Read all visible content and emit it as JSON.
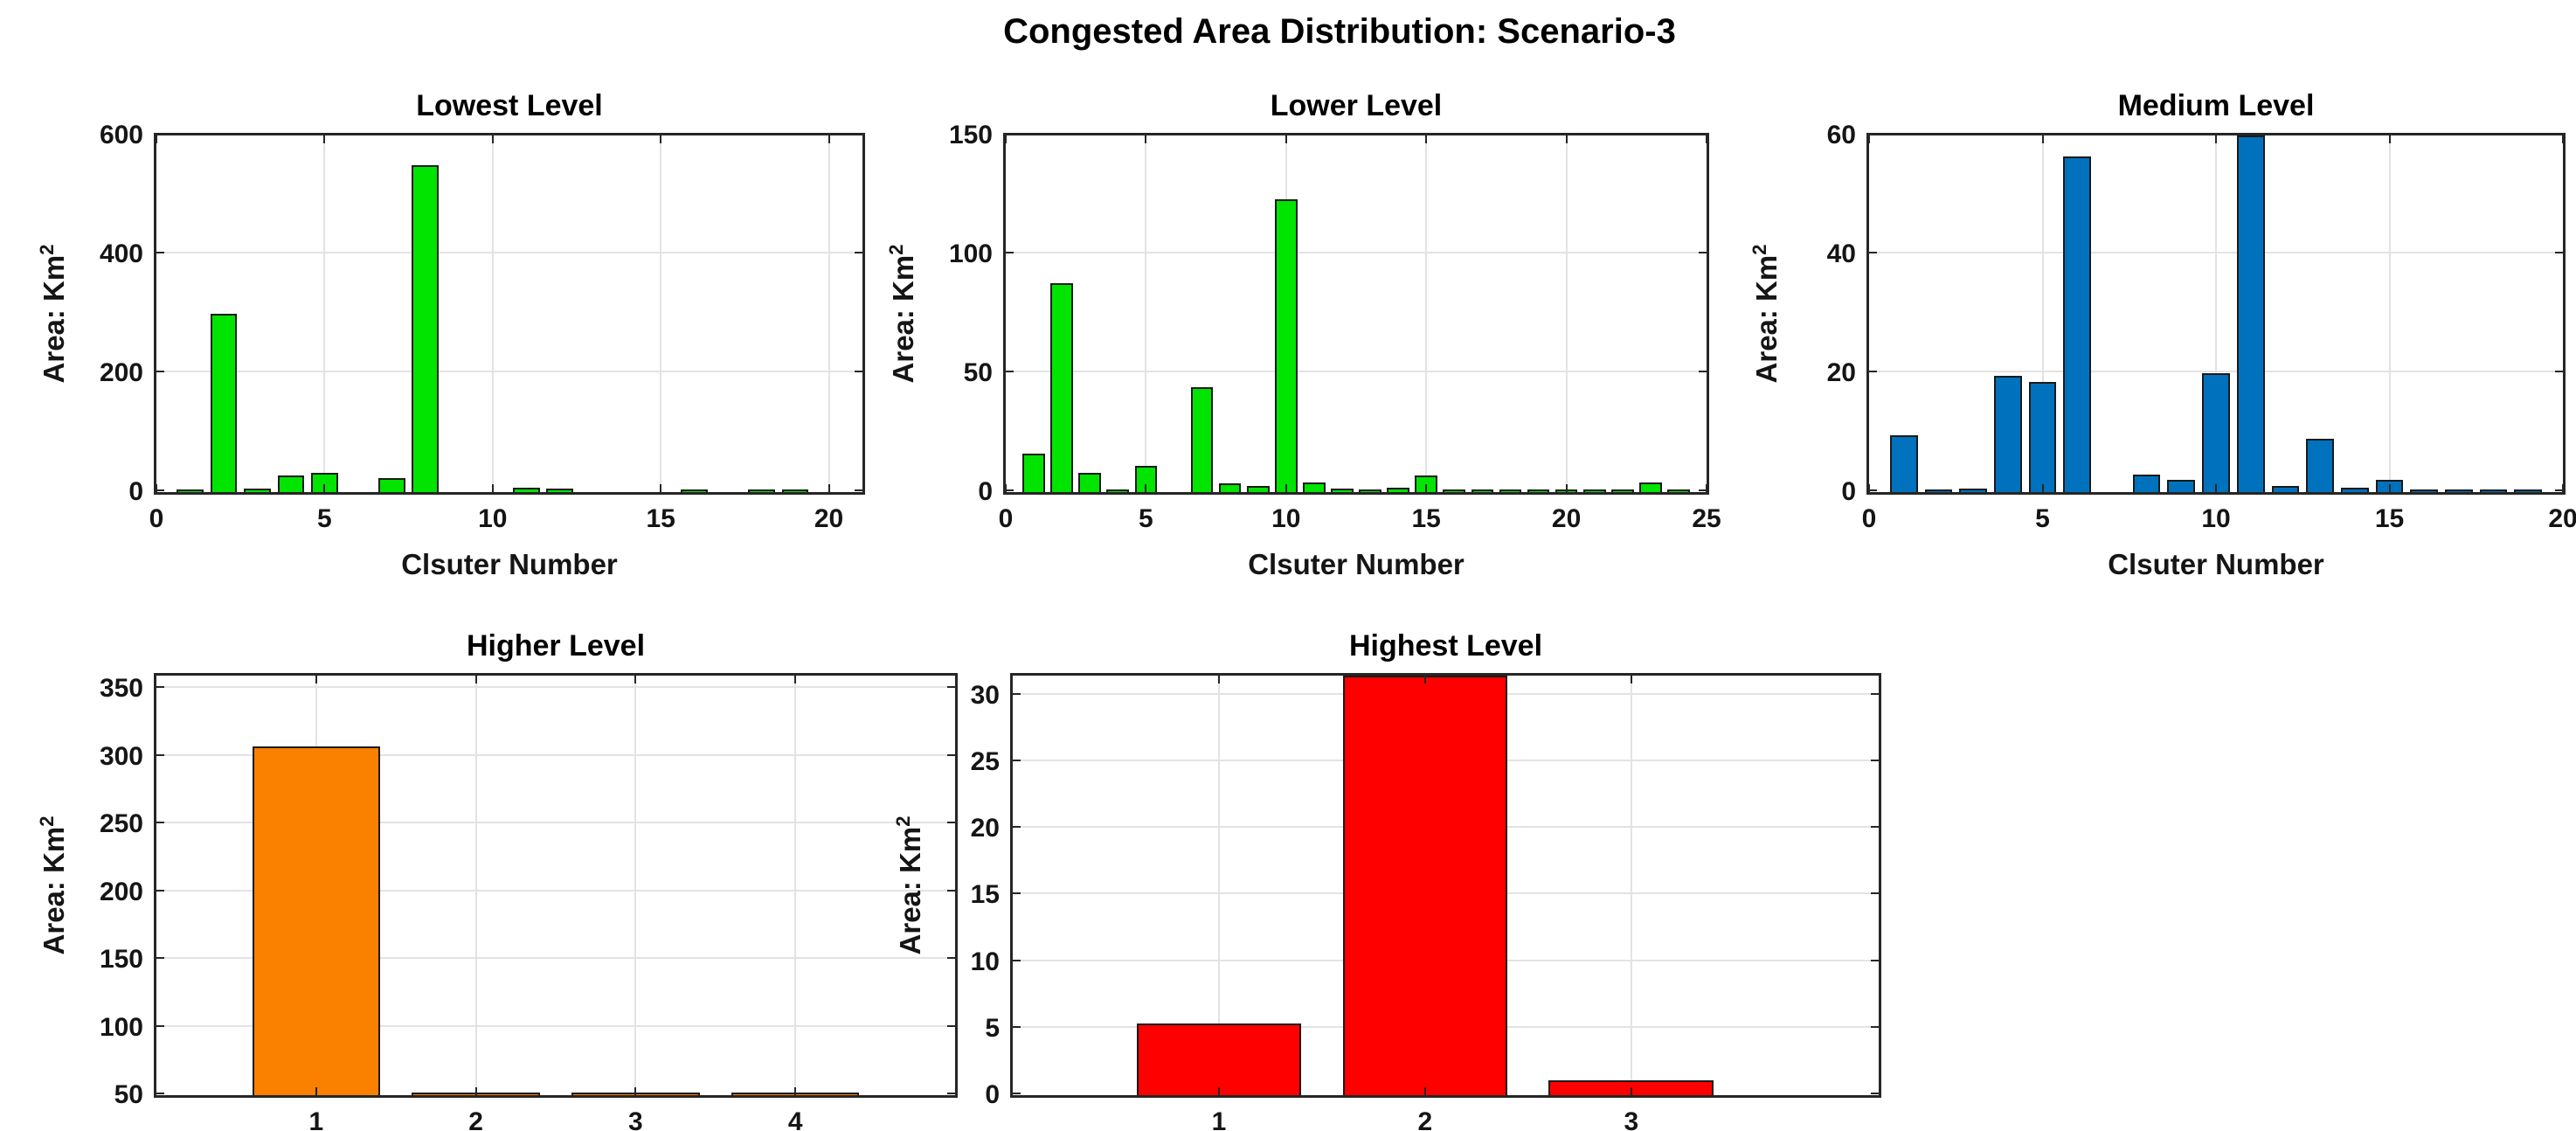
{
  "figure": {
    "title": "Congested Area Distribution: Scenario-3",
    "background_color": "#ffffff",
    "grid_color": "#e3e3e3",
    "spine_color": "#262626",
    "text_color": "#111111"
  },
  "chart_data": [
    {
      "type": "bar",
      "title": "Lowest Level",
      "xlabel": "Clsuter Number",
      "ylabel": "Area: Km",
      "ylabel_sup": "2",
      "bar_color": "#00E400",
      "bar_edge_color": "#1a1a1a",
      "categories": [
        1,
        2,
        3,
        4,
        5,
        6,
        7,
        8,
        9,
        10,
        11,
        12,
        13,
        14,
        15,
        16,
        17,
        18,
        19,
        20
      ],
      "values": [
        4,
        300,
        6,
        28,
        32,
        0,
        23,
        550,
        0,
        0,
        7,
        6,
        0,
        0,
        0,
        2,
        0,
        2,
        5,
        0
      ],
      "xlim": [
        0,
        21
      ],
      "ylim": [
        0,
        600
      ],
      "xticks": [
        0,
        5,
        10,
        15,
        20
      ],
      "yticks": [
        0,
        200,
        400,
        600
      ],
      "grid": true,
      "bar_width_units": 0.8
    },
    {
      "type": "bar",
      "title": "Lower Level",
      "xlabel": "Clsuter Number",
      "ylabel": "Area: Km",
      "ylabel_sup": "2",
      "bar_color": "#00E400",
      "bar_edge_color": "#1a1a1a",
      "categories": [
        1,
        2,
        3,
        4,
        5,
        6,
        7,
        8,
        9,
        10,
        11,
        12,
        13,
        14,
        15,
        16,
        17,
        18,
        19,
        20,
        21,
        22,
        23,
        24
      ],
      "values": [
        16,
        88,
        8,
        1,
        11,
        0,
        44,
        3.5,
        2.5,
        123,
        4,
        1.5,
        1,
        2,
        7,
        0.2,
        0.2,
        0.2,
        0.2,
        1,
        0.2,
        0.2,
        4,
        0.2
      ],
      "xlim": [
        0,
        25
      ],
      "ylim": [
        0,
        150
      ],
      "xticks": [
        0,
        5,
        10,
        15,
        20,
        25
      ],
      "yticks": [
        0,
        50,
        100,
        150
      ],
      "grid": true,
      "bar_width_units": 0.8
    },
    {
      "type": "bar",
      "title": "Medium Level",
      "xlabel": "Clsuter Number",
      "ylabel": "Area: Km",
      "ylabel_sup": "2",
      "bar_color": "#0072BD",
      "bar_edge_color": "#1a1a1a",
      "categories": [
        1,
        2,
        3,
        4,
        5,
        6,
        7,
        8,
        9,
        10,
        11,
        12,
        13,
        14,
        15,
        16,
        17,
        18,
        19
      ],
      "values": [
        9.5,
        0.2,
        0.6,
        19.5,
        18.5,
        56.5,
        0,
        3,
        2,
        20,
        61,
        1,
        9,
        0.8,
        2,
        0.5,
        0.2,
        0.2,
        0.2
      ],
      "xlim": [
        0,
        20
      ],
      "ylim": [
        0,
        60
      ],
      "xticks": [
        0,
        5,
        10,
        15,
        20
      ],
      "yticks": [
        0,
        20,
        40,
        60
      ],
      "grid": true,
      "bar_width_units": 0.8,
      "note_clipped_categories": [
        11
      ]
    },
    {
      "type": "bar",
      "title": "Higher Level",
      "xlabel": "Clsuter Number",
      "ylabel": "Area: Km",
      "ylabel_sup": "2",
      "bar_color": "#FA8000",
      "bar_edge_color": "#1a1a1a",
      "categories": [
        1,
        2,
        3,
        4
      ],
      "values": [
        308,
        50.5,
        50.5,
        50.5
      ],
      "xlim": [
        0,
        5
      ],
      "ylim": [
        50,
        360
      ],
      "xticks": [
        1,
        2,
        3,
        4
      ],
      "yticks": [
        50,
        100,
        150,
        200,
        250,
        300,
        350
      ],
      "grid": true,
      "bar_width_units": 0.8
    },
    {
      "type": "bar",
      "title": "Highest Level",
      "xlabel": "Clsuter Number",
      "ylabel": "Area: Km",
      "ylabel_sup": "2",
      "bar_color": "#FF0000",
      "bar_edge_color": "#1a1a1a",
      "categories": [
        1,
        2,
        3
      ],
      "values": [
        5.4,
        32,
        1.1
      ],
      "xlim": [
        0,
        4.2
      ],
      "ylim": [
        0,
        31.5
      ],
      "xticks": [
        1,
        2,
        3
      ],
      "yticks": [
        0,
        5,
        10,
        15,
        20,
        25,
        30
      ],
      "grid": true,
      "bar_width_units": 0.8,
      "note_clipped_categories": [
        2
      ]
    }
  ]
}
